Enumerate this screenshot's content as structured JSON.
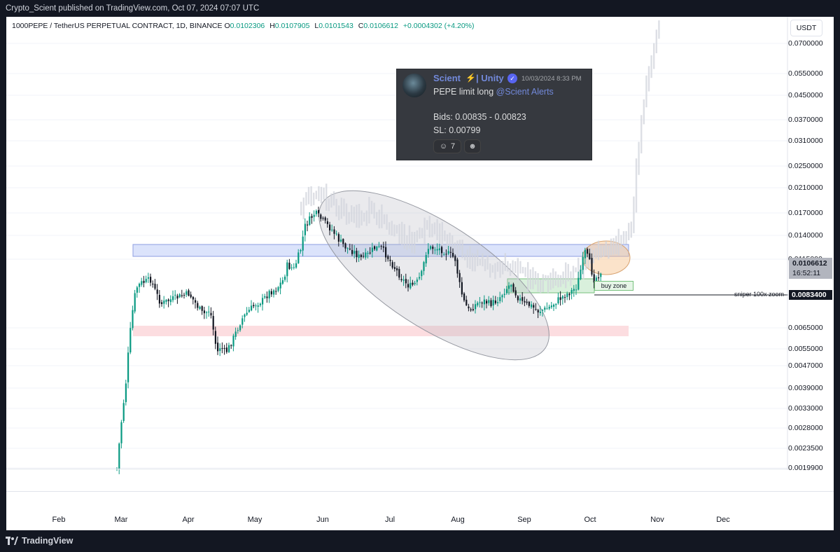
{
  "header": {
    "publisher_line": "Crypto_Scient published on TradingView.com, Oct 07, 2024 07:07 UTC"
  },
  "symbol": {
    "name": "1000PEPE / TetherUS PERPETUAL CONTRACT, 1D, BINANCE",
    "open_label": "O",
    "open": "0.0102306",
    "high_label": "H",
    "high": "0.0107905",
    "low_label": "L",
    "low": "0.0101543",
    "close_label": "C",
    "close": "0.0106612",
    "change": "+0.0004302 (+4.20%)"
  },
  "currency_button": "USDT",
  "price_axis": {
    "scale": "log",
    "labels": [
      "0.0700000",
      "0.0550000",
      "0.0450000",
      "0.0370000",
      "0.0310000",
      "0.0250000",
      "0.0210000",
      "0.0170000",
      "0.0140000",
      "0.0115000",
      "0.0065000",
      "0.0055000",
      "0.0047000",
      "0.0039000",
      "0.0033000",
      "0.0028000",
      "0.0023500",
      "0.0019900"
    ]
  },
  "current_price": {
    "value": "0.0106612",
    "countdown": "16:52:11"
  },
  "sniper": {
    "label": "sniper 100x zoom",
    "price": "0.0083400"
  },
  "buy_zone": {
    "label": "buy zone"
  },
  "time_axis": {
    "months": [
      "Feb",
      "Mar",
      "Apr",
      "May",
      "Jun",
      "Jul",
      "Aug",
      "Sep",
      "Oct",
      "Nov",
      "Dec"
    ]
  },
  "discord": {
    "username": "Scient",
    "role": "| Unity",
    "timestamp": "10/03/2024 8:33 PM",
    "message": "PEPE limit long",
    "mention": "@Scient Alerts",
    "bids": "Bids: 0.00835 - 0.00823",
    "sl": "SL: 0.00799",
    "reaction_count": "7",
    "reaction_icon": "emoji-face-icon"
  },
  "footer": {
    "brand": "TradingView"
  },
  "colors": {
    "up": "#089981",
    "down": "#131722",
    "resistance_zone": "#dbe3fb",
    "support_zone": "#fcdde0",
    "buy_zone": "#d9f0dc",
    "projection": "#d1d4dc"
  }
}
